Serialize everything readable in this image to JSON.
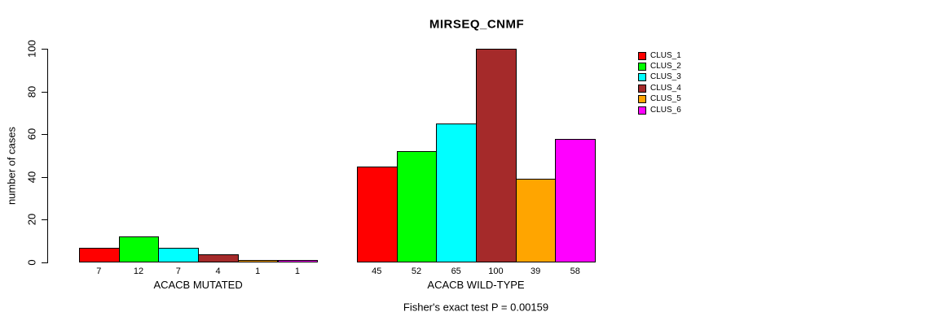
{
  "chart_data": {
    "type": "bar",
    "title": "MIRSEQ_CNMF",
    "ylabel": "number of cases",
    "ylim": [
      0,
      100
    ],
    "yticks": [
      0,
      20,
      40,
      60,
      80,
      100
    ],
    "grid": false,
    "legend_position": "right",
    "categories": [
      "ACACB MUTATED",
      "ACACB WILD-TYPE"
    ],
    "series": [
      {
        "name": "CLUS_1",
        "color": "#ff0000",
        "values": [
          7,
          45
        ]
      },
      {
        "name": "CLUS_2",
        "color": "#00ff00",
        "values": [
          12,
          52
        ]
      },
      {
        "name": "CLUS_3",
        "color": "#00ffff",
        "values": [
          7,
          65
        ]
      },
      {
        "name": "CLUS_4",
        "color": "#a52a2a",
        "values": [
          4,
          100
        ]
      },
      {
        "name": "CLUS_5",
        "color": "#ffa500",
        "values": [
          1,
          39
        ]
      },
      {
        "name": "CLUS_6",
        "color": "#ff00ff",
        "values": [
          1,
          58
        ]
      }
    ],
    "bar_labels_shown": true,
    "caption": "Fisher's exact test P = 0.00159"
  }
}
